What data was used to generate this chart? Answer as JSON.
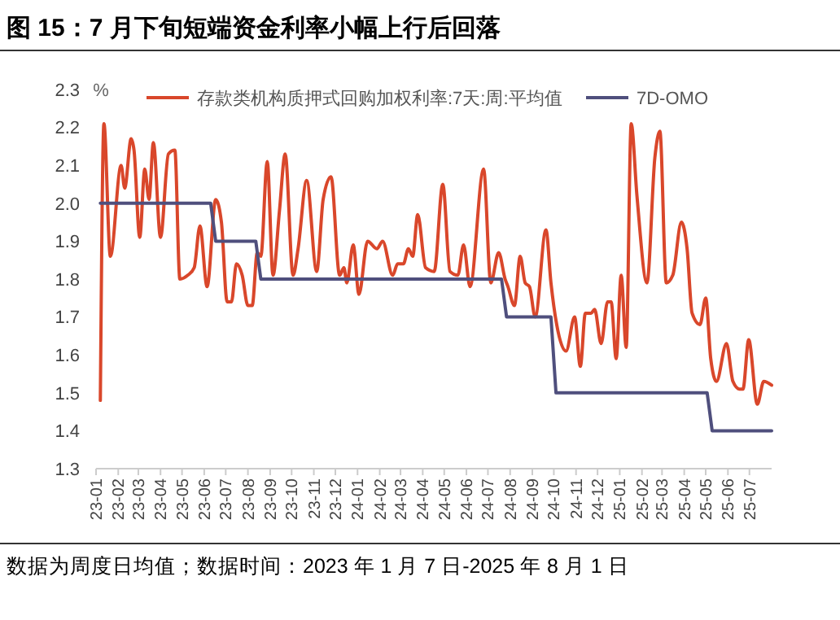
{
  "chart_data": {
    "type": "line",
    "title": "图 15：7 月下旬短端资金利率小幅上行后回落",
    "ylabel": "%",
    "annotations": [
      "数据为周度日均值；数据时间：2023 年 1 月 7 日-2025 年 8 月 1 日"
    ],
    "xlim": [
      "2023-01-01",
      "2025-08-01"
    ],
    "xticks": [
      {
        "value": "2023-01",
        "label": "23-01"
      },
      {
        "value": "2023-02",
        "label": "23-02"
      },
      {
        "value": "2023-03",
        "label": "23-03"
      },
      {
        "value": "2023-04",
        "label": "23-04"
      },
      {
        "value": "2023-05",
        "label": "23-05"
      },
      {
        "value": "2023-06",
        "label": "23-06"
      },
      {
        "value": "2023-07",
        "label": "23-07"
      },
      {
        "value": "2023-08",
        "label": "23-08"
      },
      {
        "value": "2023-09",
        "label": "23-09"
      },
      {
        "value": "2023-10",
        "label": "23-10"
      },
      {
        "value": "2023-11",
        "label": "23-11"
      },
      {
        "value": "2023-12",
        "label": "23-12"
      },
      {
        "value": "2024-01",
        "label": "24-01"
      },
      {
        "value": "2024-02",
        "label": "24-02"
      },
      {
        "value": "2024-03",
        "label": "24-03"
      },
      {
        "value": "2024-04",
        "label": "24-04"
      },
      {
        "value": "2024-05",
        "label": "24-05"
      },
      {
        "value": "2024-06",
        "label": "24-06"
      },
      {
        "value": "2024-07",
        "label": "24-07"
      },
      {
        "value": "2024-08",
        "label": "24-08"
      },
      {
        "value": "2024-09",
        "label": "24-09"
      },
      {
        "value": "2024-10",
        "label": "24-10"
      },
      {
        "value": "2024-11",
        "label": "24-11"
      },
      {
        "value": "2024-12",
        "label": "24-12"
      },
      {
        "value": "2025-01",
        "label": "25-01"
      },
      {
        "value": "2025-02",
        "label": "25-02"
      },
      {
        "value": "2025-03",
        "label": "25-03"
      },
      {
        "value": "2025-04",
        "label": "25-04"
      },
      {
        "value": "2025-05",
        "label": "25-05"
      },
      {
        "value": "2025-06",
        "label": "25-06"
      },
      {
        "value": "2025-07",
        "label": "25-07"
      }
    ],
    "ylim": [
      1.3,
      2.3
    ],
    "yticks": [
      {
        "value": 1.3,
        "label": "1.3"
      },
      {
        "value": 1.4,
        "label": "1.4"
      },
      {
        "value": 1.5,
        "label": "1.5"
      },
      {
        "value": 1.6,
        "label": "1.6"
      },
      {
        "value": 1.7,
        "label": "1.7"
      },
      {
        "value": 1.8,
        "label": "1.8"
      },
      {
        "value": 1.9,
        "label": "1.9"
      },
      {
        "value": 2.0,
        "label": "2.0"
      },
      {
        "value": 2.1,
        "label": "2.1"
      },
      {
        "value": 2.2,
        "label": "2.2"
      },
      {
        "value": 2.3,
        "label": "2.3"
      }
    ],
    "grid": false,
    "legend": "top",
    "marker": "none",
    "line_style": "solid",
    "series": [
      {
        "name": "存款类机构质押式回购加权利率:7天:周:平均值",
        "color": "#d9472b",
        "x": [
          "2023-01-07",
          "2023-01-12",
          "2023-01-21",
          "2023-02-05",
          "2023-02-10",
          "2023-02-19",
          "2023-02-23",
          "2023-03-03",
          "2023-03-10",
          "2023-03-16",
          "2023-03-22",
          "2023-04-01",
          "2023-04-12",
          "2023-04-21",
          "2023-04-28",
          "2023-05-09",
          "2023-05-18",
          "2023-05-26",
          "2023-06-05",
          "2023-06-17",
          "2023-06-25",
          "2023-07-03",
          "2023-07-09",
          "2023-07-16",
          "2023-07-24",
          "2023-08-01",
          "2023-08-07",
          "2023-08-14",
          "2023-08-19",
          "2023-08-28",
          "2023-09-05",
          "2023-09-14",
          "2023-09-22",
          "2023-10-03",
          "2023-10-10",
          "2023-10-22",
          "2023-11-05",
          "2023-11-14",
          "2023-11-25",
          "2023-12-07",
          "2023-12-13",
          "2023-12-17",
          "2023-12-26",
          "2024-01-03",
          "2024-01-15",
          "2024-01-28",
          "2024-02-05",
          "2024-02-19",
          "2024-02-26",
          "2024-03-05",
          "2024-03-12",
          "2024-03-18",
          "2024-03-25",
          "2024-04-05",
          "2024-04-17",
          "2024-04-29",
          "2024-05-09",
          "2024-05-20",
          "2024-05-28",
          "2024-06-06",
          "2024-06-25",
          "2024-07-05",
          "2024-07-16",
          "2024-07-25",
          "2024-07-29",
          "2024-08-07",
          "2024-08-15",
          "2024-08-22",
          "2024-08-28",
          "2024-09-05",
          "2024-09-20",
          "2024-09-27",
          "2024-10-05",
          "2024-10-18",
          "2024-10-30",
          "2024-11-07",
          "2024-11-14",
          "2024-11-22",
          "2024-11-27",
          "2024-12-06",
          "2024-12-15",
          "2024-12-20",
          "2024-12-27",
          "2025-01-03",
          "2025-01-10",
          "2025-01-17",
          "2025-01-25",
          "2025-02-08",
          "2025-02-19",
          "2025-02-26",
          "2025-03-07",
          "2025-03-16",
          "2025-03-28",
          "2025-04-05",
          "2025-04-12",
          "2025-04-23",
          "2025-05-01",
          "2025-05-08",
          "2025-05-16",
          "2025-05-30",
          "2025-06-08",
          "2025-06-17",
          "2025-06-22",
          "2025-06-30",
          "2025-07-12",
          "2025-07-21",
          "2025-08-01"
        ],
        "values": [
          1.48,
          2.21,
          1.86,
          2.1,
          2.04,
          2.17,
          2.14,
          1.91,
          2.09,
          2.01,
          2.16,
          1.91,
          2.13,
          2.14,
          1.8,
          1.81,
          1.83,
          1.94,
          1.78,
          2.01,
          1.95,
          1.74,
          1.74,
          1.84,
          1.81,
          1.73,
          1.73,
          1.87,
          1.86,
          2.11,
          1.81,
          1.98,
          2.13,
          1.81,
          1.88,
          2.06,
          1.82,
          2.01,
          2.07,
          1.81,
          1.83,
          1.79,
          1.89,
          1.76,
          1.9,
          1.88,
          1.9,
          1.81,
          1.84,
          1.84,
          1.88,
          1.86,
          1.97,
          1.83,
          1.82,
          2.05,
          1.82,
          1.81,
          1.89,
          1.78,
          2.09,
          1.79,
          1.87,
          1.8,
          1.78,
          1.73,
          1.86,
          1.79,
          1.78,
          1.7,
          1.93,
          1.79,
          1.68,
          1.61,
          1.7,
          1.57,
          1.71,
          1.71,
          1.72,
          1.63,
          1.74,
          1.74,
          1.59,
          1.81,
          1.62,
          2.21,
          2.02,
          1.79,
          2.12,
          2.19,
          1.79,
          1.81,
          1.95,
          1.88,
          1.71,
          1.68,
          1.75,
          1.59,
          1.53,
          1.63,
          1.53,
          1.51,
          1.51,
          1.64,
          1.47,
          1.53,
          1.52
        ]
      },
      {
        "name": "7D-OMO",
        "color": "#4f4f7d",
        "x": [
          "2023-01-07",
          "2023-06-10",
          "2023-06-17",
          "2023-08-12",
          "2023-08-19",
          "2024-07-20",
          "2024-07-27",
          "2024-09-27",
          "2024-10-04",
          "2025-05-03",
          "2025-05-10",
          "2025-08-01"
        ],
        "values": [
          2.0,
          2.0,
          1.9,
          1.9,
          1.8,
          1.8,
          1.7,
          1.7,
          1.5,
          1.5,
          1.4,
          1.4
        ]
      }
    ]
  }
}
